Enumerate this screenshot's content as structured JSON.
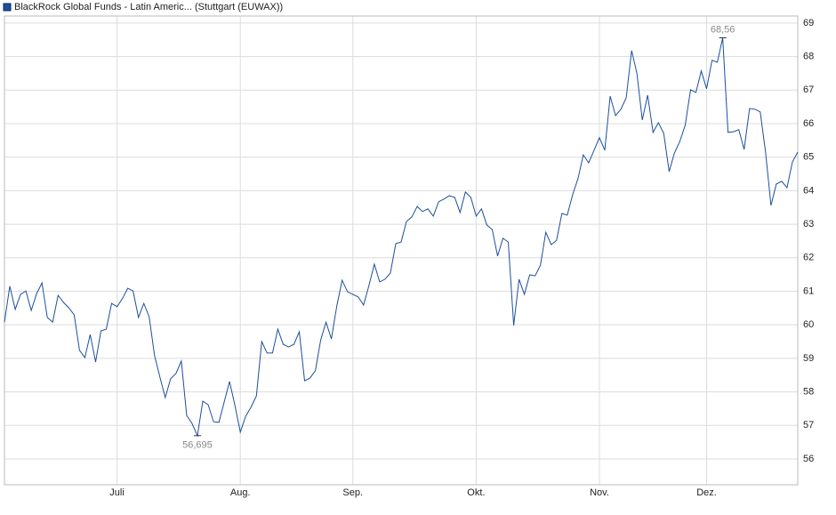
{
  "chart_data": {
    "type": "line",
    "series": [
      {
        "name": "BlackRock Global Funds - Latin Americ... (Stuttgart (EUWAX))",
        "color": "#1c4f9c",
        "values": [
          60.08,
          61.15,
          60.46,
          60.91,
          61.01,
          60.43,
          60.93,
          61.25,
          60.22,
          60.08,
          60.88,
          60.67,
          60.51,
          60.3,
          59.24,
          59.02,
          59.71,
          58.89,
          59.82,
          59.87,
          60.64,
          60.54,
          60.78,
          61.09,
          61.01,
          60.22,
          60.64,
          60.24,
          59.08,
          58.44,
          57.83,
          58.39,
          58.55,
          58.92,
          57.3,
          57.06,
          56.695,
          57.72,
          57.62,
          57.11,
          57.09,
          57.7,
          58.31,
          57.59,
          56.8,
          57.27,
          57.54,
          57.88,
          59.5,
          59.16,
          59.16,
          59.87,
          59.42,
          59.34,
          59.42,
          59.79,
          58.33,
          58.41,
          58.63,
          59.55,
          60.08,
          59.58,
          60.56,
          61.33,
          60.99,
          60.91,
          60.83,
          60.59,
          61.17,
          61.81,
          61.28,
          61.36,
          61.54,
          62.42,
          62.47,
          63.08,
          63.22,
          63.53,
          63.38,
          63.46,
          63.24,
          63.67,
          63.75,
          63.85,
          63.8,
          63.35,
          63.96,
          63.8,
          63.24,
          63.46,
          62.98,
          62.84,
          62.05,
          62.58,
          62.47,
          59.98,
          61.36,
          60.91,
          61.49,
          61.46,
          61.78,
          62.76,
          62.39,
          62.52,
          63.32,
          63.27,
          63.88,
          64.36,
          65.07,
          64.83,
          65.21,
          65.58,
          65.21,
          66.82,
          66.24,
          66.43,
          66.77,
          68.18,
          67.49,
          66.11,
          66.85,
          65.74,
          66.03,
          65.71,
          64.57,
          65.13,
          65.47,
          65.95,
          67.01,
          66.93,
          67.57,
          67.04,
          67.89,
          67.83,
          68.56,
          65.74,
          65.76,
          65.82,
          65.23,
          66.45,
          66.43,
          66.35,
          65.15,
          63.56,
          64.2,
          64.28,
          64.09,
          64.86,
          65.15
        ]
      }
    ],
    "max_label": "68,56",
    "min_label": "56,695",
    "xlim": [
      0,
      148
    ],
    "xticks": [
      {
        "value": 21,
        "label": "Juli"
      },
      {
        "value": 44,
        "label": "Aug."
      },
      {
        "value": 65,
        "label": "Sep."
      },
      {
        "value": 88,
        "label": "Okt."
      },
      {
        "value": 111,
        "label": "Nov."
      },
      {
        "value": 131,
        "label": "Dez."
      }
    ],
    "ylim": [
      55.23,
      69.21
    ],
    "yticks": [
      56,
      57,
      58,
      59,
      60,
      61,
      62,
      63,
      64,
      65,
      66,
      67,
      68,
      69
    ],
    "grid": true
  }
}
